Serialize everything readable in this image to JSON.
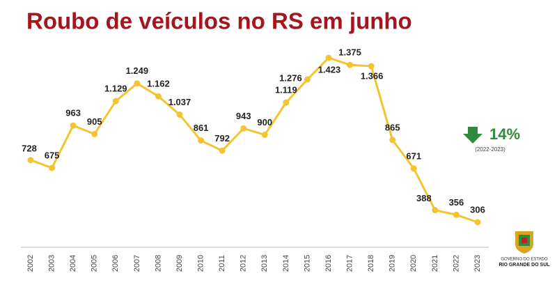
{
  "chart_data": {
    "type": "line",
    "title": "Roubo de veículos no RS em junho",
    "categories": [
      "2002",
      "2003",
      "2004",
      "2005",
      "2006",
      "2007",
      "2008",
      "2009",
      "2010",
      "2011",
      "2012",
      "2013",
      "2014",
      "2015",
      "2016",
      "2017",
      "2018",
      "2019",
      "2020",
      "2021",
      "2022",
      "2023"
    ],
    "values": [
      728,
      675,
      963,
      905,
      1129,
      1249,
      1162,
      1037,
      861,
      792,
      943,
      900,
      1119,
      1276,
      1423,
      1375,
      1366,
      865,
      671,
      388,
      356,
      306
    ],
    "value_labels": [
      "728",
      "675",
      "963",
      "905",
      "1.129",
      "1.249",
      "1.162",
      "1.037",
      "861",
      "792",
      "943",
      "900",
      "1.119",
      "1.276",
      "1.423",
      "1.375",
      "1.366",
      "865",
      "671",
      "388",
      "356",
      "306"
    ],
    "color": "#f3c431",
    "annotations": {
      "change": "14%",
      "period": "(2022-2023)"
    }
  },
  "logo": {
    "line1": "GOVERNO DO ESTADO",
    "line2": "RIO GRANDE DO SUL"
  }
}
